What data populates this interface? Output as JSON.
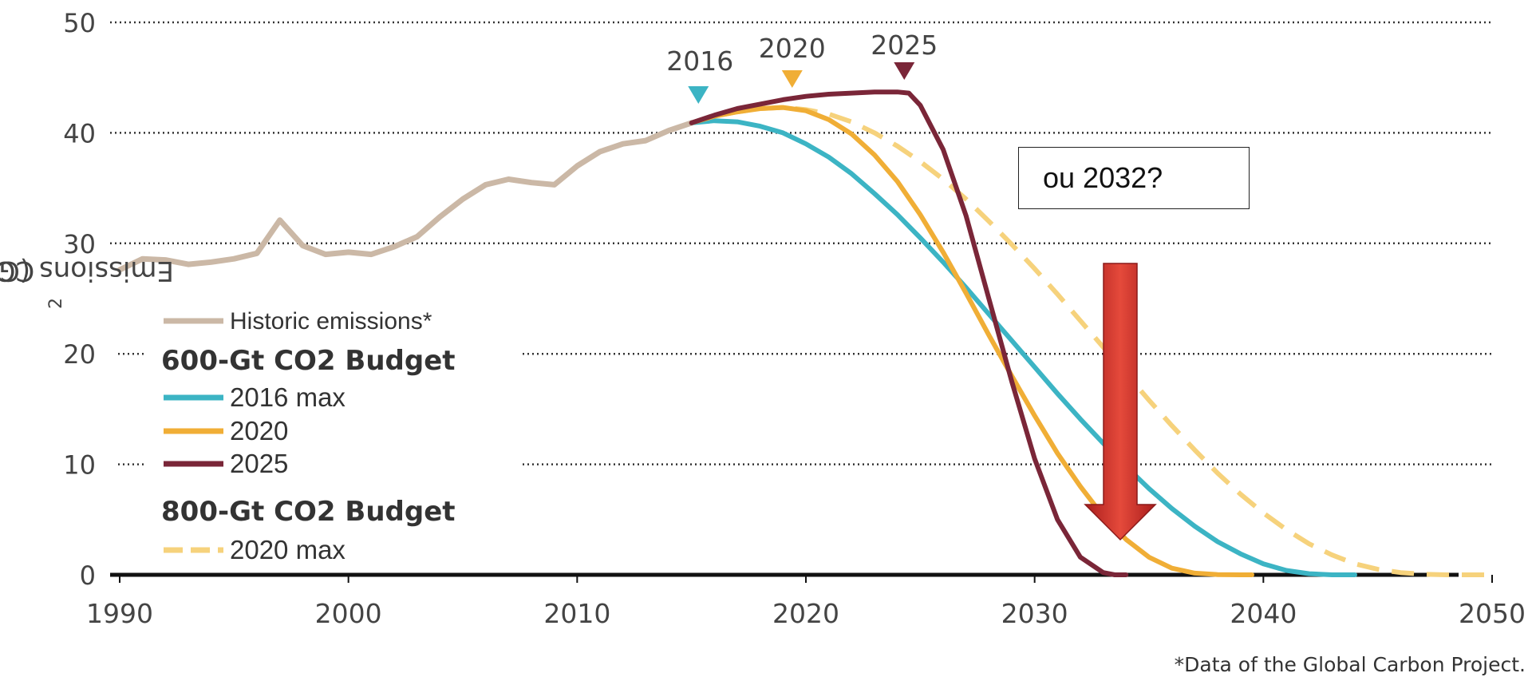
{
  "chart_data": {
    "type": "line",
    "ylabel_main": "CO",
    "ylabel_sub": "2",
    "ylabel_rest": " Emissions (Gt per year)",
    "xlim": [
      1990,
      2050
    ],
    "ylim": [
      0,
      50
    ],
    "x_ticks": [
      "1990",
      "2000",
      "2010",
      "2020",
      "2030",
      "2040",
      "2050"
    ],
    "y_ticks": [
      "0",
      "10",
      "20",
      "30",
      "40",
      "50"
    ],
    "grid": "horizontal-dotted",
    "footnote": "*Data of the Global Carbon Project.",
    "callout": "ou 2032?",
    "markers": [
      {
        "label": "2016",
        "x": 2015.3,
        "color": "#3cb4c4"
      },
      {
        "label": "2020",
        "x": 2019.4,
        "color": "#f0ae36"
      },
      {
        "label": "2025",
        "x": 2024.3,
        "color": "#7a2638"
      }
    ],
    "legend": {
      "historic": "Historic emissions*",
      "group1_title": "600-Gt CO2 Budget",
      "group1_items": [
        "2016 max",
        "2020",
        "2025"
      ],
      "group2_title": "800-Gt CO2 Budget",
      "group2_items": [
        "2020 max"
      ]
    },
    "series": [
      {
        "name": "Historic emissions*",
        "color": "#cbb8a6",
        "style": "solid",
        "x": [
          1990,
          1991,
          1992,
          1993,
          1994,
          1995,
          1996,
          1997,
          1998,
          1999,
          2000,
          2001,
          2002,
          2003,
          2004,
          2005,
          2006,
          2007,
          2008,
          2009,
          2010,
          2011,
          2012,
          2013,
          2014,
          2015
        ],
        "y": [
          27.6,
          28.6,
          28.5,
          28.1,
          28.3,
          28.6,
          29.1,
          32.1,
          29.8,
          29.0,
          29.2,
          29.0,
          29.7,
          30.6,
          32.4,
          34.0,
          35.3,
          35.8,
          35.5,
          35.3,
          37.0,
          38.3,
          39.0,
          39.3,
          40.2,
          40.9
        ]
      },
      {
        "name": "2016 max",
        "color": "#3cb4c4",
        "style": "solid",
        "x": [
          2015,
          2016,
          2017,
          2018,
          2019,
          2020,
          2021,
          2022,
          2023,
          2024,
          2025,
          2026,
          2027,
          2028,
          2029,
          2030,
          2031,
          2032,
          2033,
          2034,
          2035,
          2036,
          2037,
          2038,
          2039,
          2040,
          2041,
          2042,
          2043,
          2044
        ],
        "y": [
          40.9,
          41.1,
          41.0,
          40.6,
          40.0,
          39.0,
          37.8,
          36.3,
          34.5,
          32.6,
          30.5,
          28.3,
          26.0,
          23.6,
          21.2,
          18.8,
          16.4,
          14.1,
          11.9,
          9.8,
          7.8,
          6.0,
          4.4,
          3.0,
          1.9,
          1.0,
          0.4,
          0.1,
          0,
          0
        ]
      },
      {
        "name": "2020",
        "color": "#f0ae36",
        "style": "solid",
        "x": [
          2015,
          2016,
          2017,
          2018,
          2019,
          2020,
          2021,
          2022,
          2023,
          2024,
          2025,
          2026,
          2027,
          2028,
          2029,
          2030,
          2031,
          2032,
          2033,
          2034,
          2035,
          2036,
          2037,
          2038,
          2039,
          2039.5
        ],
        "y": [
          40.9,
          41.5,
          41.9,
          42.2,
          42.3,
          42.0,
          41.2,
          39.9,
          38.0,
          35.6,
          32.6,
          29.2,
          25.5,
          21.7,
          18.0,
          14.4,
          11.0,
          8.0,
          5.3,
          3.2,
          1.6,
          0.6,
          0.15,
          0.02,
          0,
          0
        ]
      },
      {
        "name": "2025",
        "color": "#7a2638",
        "style": "solid",
        "x": [
          2015,
          2016,
          2017,
          2018,
          2019,
          2020,
          2021,
          2022,
          2023,
          2024,
          2024.5,
          2025,
          2026,
          2027,
          2028,
          2029,
          2030,
          2031,
          2032,
          2033,
          2033.5,
          2034
        ],
        "y": [
          40.9,
          41.6,
          42.2,
          42.6,
          43.0,
          43.3,
          43.5,
          43.6,
          43.7,
          43.7,
          43.6,
          42.5,
          38.5,
          32.5,
          25.0,
          17.5,
          10.5,
          5.0,
          1.6,
          0.2,
          0,
          0
        ]
      },
      {
        "name": "2020 max",
        "color": "#f6d27c",
        "style": "dashed",
        "x": [
          2015,
          2016,
          2017,
          2018,
          2019,
          2020,
          2021,
          2022,
          2023,
          2024,
          2025,
          2026,
          2027,
          2028,
          2029,
          2030,
          2031,
          2032,
          2033,
          2034,
          2035,
          2036,
          2037,
          2038,
          2039,
          2040,
          2041,
          2042,
          2043,
          2044,
          2045,
          2046,
          2047,
          2048,
          2049,
          2050
        ],
        "y": [
          40.9,
          41.5,
          41.9,
          42.2,
          42.3,
          42.1,
          41.7,
          41.0,
          40.0,
          38.8,
          37.4,
          35.8,
          34.0,
          32.0,
          29.9,
          27.7,
          25.4,
          23.0,
          20.6,
          18.2,
          15.8,
          13.5,
          11.3,
          9.2,
          7.3,
          5.6,
          4.1,
          2.8,
          1.8,
          1.0,
          0.5,
          0.2,
          0.05,
          0,
          0,
          0
        ]
      }
    ]
  }
}
